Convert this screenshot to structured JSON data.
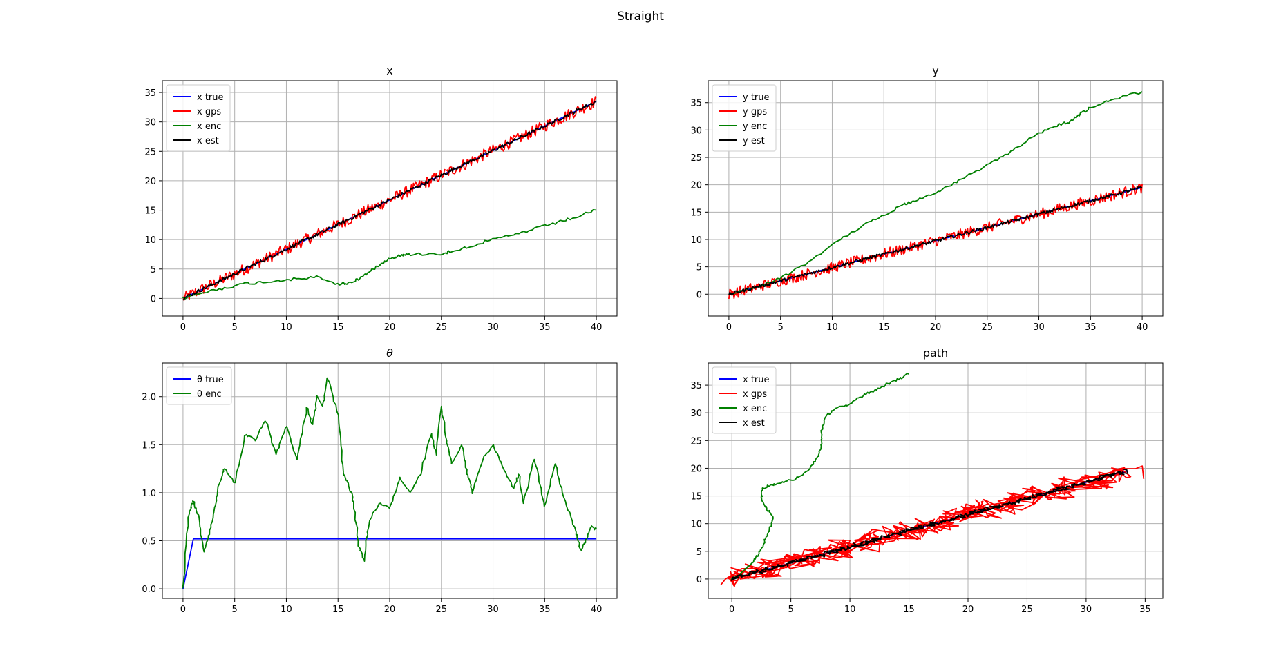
{
  "figure": {
    "title": "Straight"
  },
  "colors": {
    "true": "#0000ff",
    "gps": "#ff0000",
    "enc": "#008000",
    "est": "#000000",
    "grid": "#b0b0b0"
  },
  "chart_data": [
    {
      "type": "line",
      "title": "x",
      "xlim": [
        -2,
        42
      ],
      "ylim": [
        -3,
        37
      ],
      "xticks": [
        0,
        5,
        10,
        15,
        20,
        25,
        30,
        35,
        40
      ],
      "yticks": [
        0,
        5,
        10,
        15,
        20,
        25,
        30,
        35
      ],
      "grid": true,
      "legend": "top-left",
      "series": [
        {
          "name": "x true",
          "role": "true",
          "x": [
            0,
            40
          ],
          "y": [
            0,
            33.5
          ]
        },
        {
          "name": "x gps",
          "role": "gps",
          "noise": 1.0,
          "x": [
            0,
            40
          ],
          "y": [
            0,
            33.5
          ]
        },
        {
          "name": "x enc",
          "role": "enc",
          "x": [
            0,
            2,
            4,
            6,
            8,
            10,
            12,
            13,
            15,
            16,
            17,
            18,
            19,
            20,
            21,
            22,
            25,
            26,
            28,
            30,
            32,
            34,
            36,
            38,
            40
          ],
          "y": [
            0,
            1,
            1.8,
            2.5,
            2.8,
            3.2,
            3.4,
            3.7,
            2.4,
            2.6,
            3.3,
            4.5,
            5.8,
            6.8,
            7.3,
            7.5,
            7.6,
            8,
            9,
            10,
            10.8,
            11.8,
            12.8,
            13.8,
            15
          ]
        },
        {
          "name": "x est",
          "role": "est",
          "noise": 0.3,
          "x": [
            0,
            40
          ],
          "y": [
            0,
            33.5
          ]
        }
      ]
    },
    {
      "type": "line",
      "title": "y",
      "xlim": [
        -2,
        42
      ],
      "ylim": [
        -4,
        39
      ],
      "xticks": [
        0,
        5,
        10,
        15,
        20,
        25,
        30,
        35,
        40
      ],
      "yticks": [
        0,
        5,
        10,
        15,
        20,
        25,
        30,
        35
      ],
      "grid": true,
      "legend": "top-left",
      "series": [
        {
          "name": "y true",
          "role": "true",
          "x": [
            0,
            40
          ],
          "y": [
            0,
            19.5
          ]
        },
        {
          "name": "y gps",
          "role": "gps",
          "noise": 1.0,
          "x": [
            0,
            40
          ],
          "y": [
            0,
            19.5
          ]
        },
        {
          "name": "y enc",
          "role": "enc",
          "x": [
            0,
            3,
            5,
            7,
            10,
            13,
            15,
            17,
            18,
            20,
            22,
            24,
            26,
            28,
            30,
            32,
            33,
            34,
            35,
            37,
            40
          ],
          "y": [
            0,
            1.5,
            3,
            5,
            9,
            12.5,
            14.5,
            16.5,
            17,
            18.5,
            20.5,
            22.5,
            24.5,
            27,
            29.5,
            31,
            31.5,
            33,
            34,
            35.5,
            37
          ]
        },
        {
          "name": "y est",
          "role": "est",
          "noise": 0.3,
          "x": [
            0,
            40
          ],
          "y": [
            0,
            19.5
          ]
        }
      ]
    },
    {
      "type": "line",
      "title": "θ",
      "xlim": [
        -2,
        42
      ],
      "ylim": [
        -0.1,
        2.35
      ],
      "xticks": [
        0,
        5,
        10,
        15,
        20,
        25,
        30,
        35,
        40
      ],
      "yticks": [
        0.0,
        0.5,
        1.0,
        1.5,
        2.0
      ],
      "ytick_labels": [
        "0.0",
        "0.5",
        "1.0",
        "1.5",
        "2.0"
      ],
      "grid": true,
      "legend": "top-left",
      "series": [
        {
          "name": "θ true",
          "role": "true",
          "x": [
            0,
            1,
            40
          ],
          "y": [
            0,
            0.52,
            0.52
          ]
        },
        {
          "name": "θ enc",
          "role": "enc",
          "x": [
            0,
            0.5,
            1,
            1.5,
            2,
            2.5,
            3,
            3.5,
            4,
            5,
            6,
            7,
            8,
            9,
            10,
            11,
            12,
            12.5,
            13,
            13.5,
            14,
            15,
            15.5,
            16,
            16.5,
            17,
            17.5,
            18,
            19,
            20,
            21,
            22,
            23,
            24,
            24.5,
            25,
            25.5,
            26,
            27,
            27.5,
            28,
            29,
            30,
            31,
            32,
            32.5,
            33,
            34,
            35,
            36,
            37,
            38,
            38.5,
            39,
            39.5,
            40
          ],
          "y": [
            0,
            0.75,
            0.92,
            0.75,
            0.38,
            0.55,
            0.8,
            1.1,
            1.25,
            1.1,
            1.6,
            1.55,
            1.75,
            1.4,
            1.7,
            1.35,
            1.9,
            1.7,
            2.0,
            1.9,
            2.2,
            1.8,
            1.2,
            1.1,
            0.9,
            0.45,
            0.3,
            0.7,
            0.9,
            0.85,
            1.15,
            1.0,
            1.2,
            1.6,
            1.4,
            1.9,
            1.55,
            1.3,
            1.5,
            1.2,
            1.0,
            1.35,
            1.5,
            1.25,
            1.05,
            1.2,
            0.9,
            1.35,
            0.85,
            1.3,
            0.9,
            0.6,
            0.4,
            0.5,
            0.65,
            0.62
          ]
        }
      ]
    },
    {
      "type": "line",
      "title": "path",
      "xlim": [
        -2,
        36.5
      ],
      "ylim": [
        -3.5,
        39
      ],
      "xticks": [
        0,
        5,
        10,
        15,
        20,
        25,
        30,
        35
      ],
      "yticks": [
        0,
        5,
        10,
        15,
        20,
        25,
        30,
        35
      ],
      "grid": true,
      "legend": "top-left",
      "series": [
        {
          "name": "x true",
          "role": "true",
          "x": [
            0,
            33.5
          ],
          "y": [
            0,
            19.5
          ]
        },
        {
          "name": "x gps",
          "role": "gps",
          "noise": 1.6,
          "x": [
            0,
            33.5
          ],
          "y": [
            0,
            19.5
          ]
        },
        {
          "name": "x enc",
          "role": "enc",
          "x": [
            0,
            1,
            1.8,
            2.4,
            2.8,
            3.2,
            3.5,
            3.0,
            2.5,
            2.6,
            3.5,
            4.5,
            5.8,
            6.8,
            7.4,
            7.6,
            7.6,
            8.0,
            9.0,
            10.0,
            11.0,
            12.0,
            13.0,
            14.0,
            15.0
          ],
          "y": [
            0,
            1.5,
            3,
            5,
            7,
            9,
            11,
            12.5,
            14.5,
            16.5,
            17,
            17.5,
            18.5,
            20.5,
            22.5,
            24.5,
            27,
            29.5,
            31,
            31.5,
            33,
            34,
            35,
            36,
            37
          ]
        },
        {
          "name": "x est",
          "role": "est",
          "noise": 0.35,
          "x": [
            0,
            33.5
          ],
          "y": [
            0,
            19.5
          ]
        }
      ]
    }
  ]
}
